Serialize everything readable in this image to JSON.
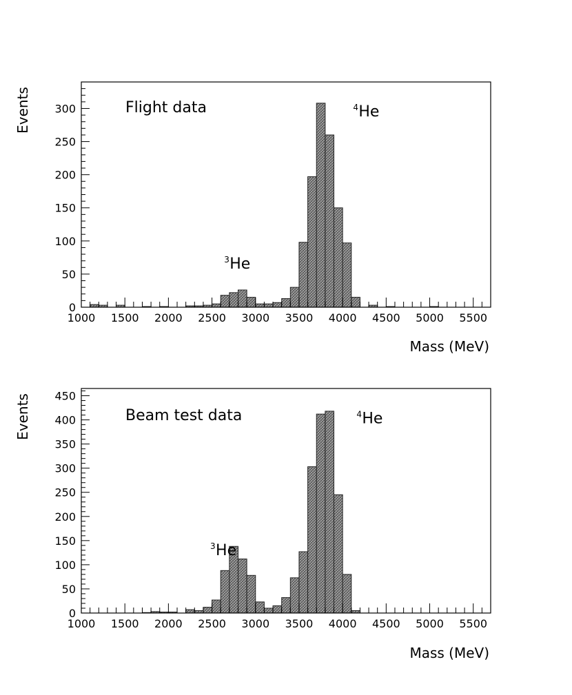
{
  "chart_data": [
    {
      "type": "bar",
      "title": "Flight data",
      "xlabel": "Mass (MeV)",
      "ylabel": "Events",
      "xlim": [
        1000,
        5700
      ],
      "ylim": [
        0,
        340
      ],
      "bin_width": 100,
      "xticks": [
        1000,
        1500,
        2000,
        2500,
        3000,
        3500,
        4000,
        4500,
        5000,
        5500
      ],
      "yticks": [
        0,
        50,
        100,
        150,
        200,
        250,
        300
      ],
      "grid": false,
      "legend": "none",
      "fill_color": "#9a9a9a",
      "bins_start": [
        1100,
        1200,
        1400,
        1700,
        1900,
        2200,
        2300,
        2400,
        2500,
        2600,
        2700,
        2800,
        2900,
        3000,
        3100,
        3200,
        3300,
        3400,
        3500,
        3600,
        3700,
        3800,
        3900,
        4000,
        4100,
        4300,
        4500,
        5000
      ],
      "values": [
        4,
        3,
        3,
        1,
        1,
        2,
        2,
        3,
        5,
        18,
        22,
        26,
        15,
        5,
        5,
        7,
        13,
        30,
        98,
        197,
        308,
        260,
        150,
        97,
        15,
        3,
        1,
        1
      ],
      "annotations": [
        {
          "sup": "4",
          "text": "He",
          "x": 4120,
          "y": 288
        },
        {
          "sup": "3",
          "text": "He",
          "x": 2640,
          "y": 58
        }
      ]
    },
    {
      "type": "bar",
      "title": "Beam test data",
      "xlabel": "Mass (MeV)",
      "ylabel": "Events",
      "xlim": [
        1000,
        5700
      ],
      "ylim": [
        0,
        465
      ],
      "bin_width": 100,
      "xticks": [
        1000,
        1500,
        2000,
        2500,
        3000,
        3500,
        4000,
        4500,
        5000,
        5500
      ],
      "yticks": [
        0,
        50,
        100,
        150,
        200,
        250,
        300,
        350,
        400,
        450
      ],
      "grid": false,
      "legend": "none",
      "fill_color": "#9a9a9a",
      "bins_start": [
        1700,
        1800,
        1900,
        2000,
        2200,
        2300,
        2400,
        2500,
        2600,
        2700,
        2800,
        2900,
        3000,
        3100,
        3200,
        3300,
        3400,
        3500,
        3600,
        3700,
        3800,
        3900,
        4000,
        4100
      ],
      "values": [
        1,
        3,
        2,
        2,
        7,
        5,
        12,
        27,
        88,
        138,
        112,
        78,
        23,
        10,
        15,
        32,
        73,
        127,
        303,
        412,
        418,
        245,
        80,
        5
      ],
      "annotations": [
        {
          "sup": "4",
          "text": "He",
          "x": 4160,
          "y": 393
        },
        {
          "sup": "3",
          "text": "He",
          "x": 2480,
          "y": 120
        }
      ]
    }
  ]
}
